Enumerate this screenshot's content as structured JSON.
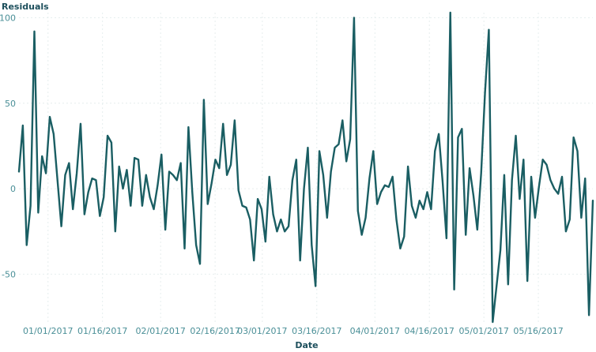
{
  "chart_data": {
    "type": "line",
    "title": "",
    "xlabel": "Date",
    "ylabel": "Residuals",
    "ylim": [
      -78,
      103
    ],
    "x_start": "12/24/2016",
    "x_end": "05/31/2017",
    "yticks": [
      {
        "value": 100,
        "label": "100"
      },
      {
        "value": 50,
        "label": "50"
      },
      {
        "value": 0,
        "label": "0"
      },
      {
        "value": -50,
        "label": "-50"
      }
    ],
    "xticks": [
      {
        "date": "2017-01-01",
        "label": "01/01/2017"
      },
      {
        "date": "2017-01-16",
        "label": "01/16/2017"
      },
      {
        "date": "2017-02-01",
        "label": "02/01/2017"
      },
      {
        "date": "2017-02-16",
        "label": "02/16/2017"
      },
      {
        "date": "2017-03-01",
        "label": "03/01/2017"
      },
      {
        "date": "2017-03-16",
        "label": "03/16/2017"
      },
      {
        "date": "2017-04-01",
        "label": "04/01/2017"
      },
      {
        "date": "2017-04-16",
        "label": "04/16/2017"
      },
      {
        "date": "2017-05-01",
        "label": "05/01/2017"
      },
      {
        "date": "2017-05-16",
        "label": "05/16/2017"
      }
    ],
    "grid": true,
    "line_color": "#1a5e63",
    "series": [
      {
        "name": "",
        "values": [
          10,
          37,
          -33,
          -10,
          92,
          -14,
          19,
          9,
          42,
          32,
          5,
          -22,
          8,
          15,
          -12,
          9,
          38,
          -15,
          -2,
          6,
          5,
          -16,
          -5,
          31,
          27,
          -25,
          13,
          0,
          11,
          -10,
          18,
          17,
          -10,
          8,
          -5,
          -12,
          2,
          20,
          -24,
          10,
          8,
          5,
          15,
          -35,
          36,
          -2,
          -33,
          -44,
          52,
          -9,
          3,
          17,
          12,
          38,
          8,
          14,
          40,
          -1,
          -10,
          -11,
          -18,
          -42,
          -6,
          -12,
          -31,
          7,
          -15,
          -25,
          -18,
          -25,
          -22,
          5,
          17,
          -42,
          0,
          24,
          -33,
          -57,
          22,
          8,
          -17,
          10,
          24,
          26,
          40,
          16,
          29,
          100,
          -13,
          -27,
          -17,
          6,
          22,
          -9,
          -2,
          2,
          1,
          7,
          -18,
          -35,
          -28,
          13,
          -10,
          -17,
          -7,
          -12,
          -2,
          -12,
          22,
          32,
          4,
          -29,
          103,
          -59,
          30,
          35,
          -27,
          12,
          -4,
          -24,
          9,
          56,
          93,
          -78,
          -57,
          -36,
          8,
          -56,
          5,
          31,
          -6,
          17,
          -54,
          7,
          -17,
          1,
          17,
          14,
          5,
          0,
          -3,
          7,
          -25,
          -18,
          30,
          22,
          -17,
          6,
          -74,
          -7
        ]
      }
    ]
  }
}
